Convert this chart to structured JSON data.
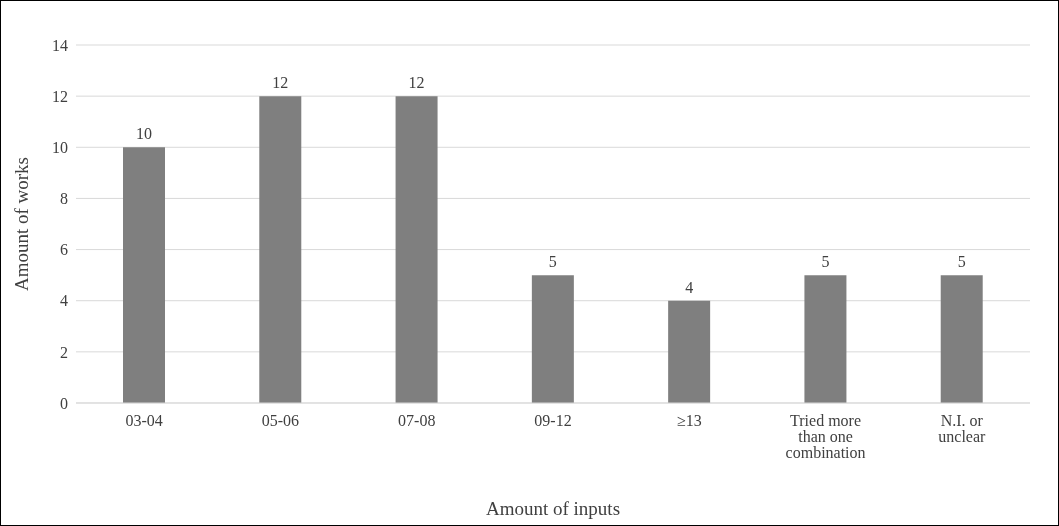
{
  "chart_data": {
    "type": "bar",
    "xlabel": "Amount of inputs",
    "ylabel": "Amount of works",
    "categories": [
      "03-04",
      "05-06",
      "07-08",
      "09-12",
      "≥13",
      "Tried more than one combination",
      "N.I. or unclear"
    ],
    "values": [
      10,
      12,
      12,
      5,
      4,
      5,
      5
    ],
    "color": "#7f7f7f",
    "ylim": [
      0,
      14
    ],
    "yticks": [
      0,
      2,
      4,
      6,
      8,
      10,
      12,
      14
    ],
    "grid": "y",
    "data_labels": true
  }
}
